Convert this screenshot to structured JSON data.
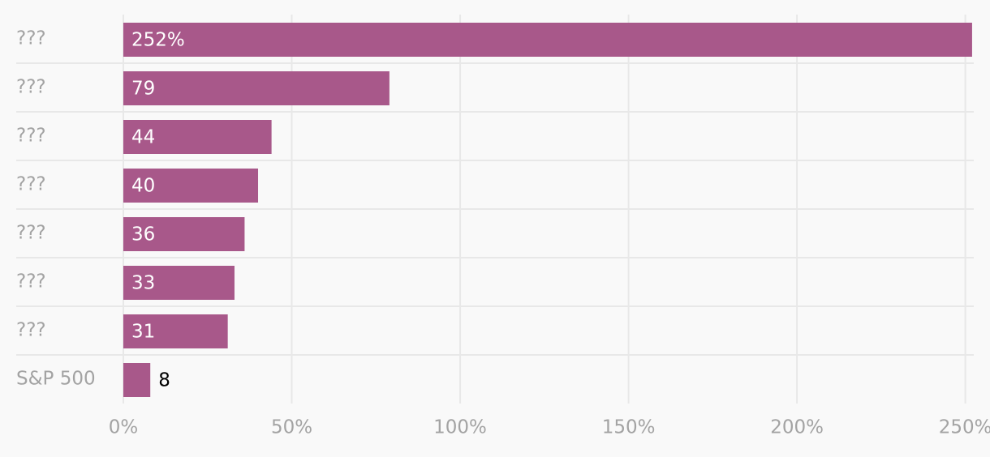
{
  "chart_data": {
    "type": "bar",
    "orientation": "horizontal",
    "categories": [
      "???",
      "???",
      "???",
      "???",
      "???",
      "???",
      "???",
      "S&P 500"
    ],
    "values": [
      252,
      79,
      44,
      40,
      36,
      33,
      31,
      8
    ],
    "value_labels": [
      "252%",
      "79",
      "44",
      "40",
      "36",
      "33",
      "31",
      "8"
    ],
    "color": "#a8588a",
    "xlim": [
      0,
      252.5
    ],
    "xticks": [
      {
        "value": 0,
        "label": "0%"
      },
      {
        "value": 50,
        "label": "50%"
      },
      {
        "value": 100,
        "label": "100%"
      },
      {
        "value": 150,
        "label": "150%"
      },
      {
        "value": 200,
        "label": "200%"
      },
      {
        "value": 250,
        "label": "250%"
      }
    ],
    "grid": true
  }
}
